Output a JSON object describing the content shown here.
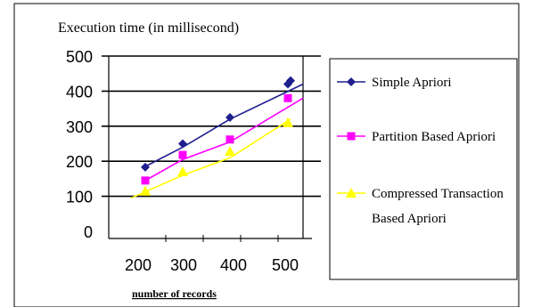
{
  "chart_data": {
    "type": "line",
    "title": "Execution time (in millisecond)",
    "xlabel": "number of records",
    "ylabel": "",
    "categories": [
      "200",
      "300",
      "400",
      "500"
    ],
    "ylim": [
      0,
      500
    ],
    "yticks": [
      "0",
      "100",
      "200",
      "300",
      "400",
      "500"
    ],
    "grid": true,
    "legend_position": "right",
    "series": [
      {
        "name": "Simple Apriori",
        "color": "#1f1f8f",
        "marker": "diamond",
        "values": [
          183,
          250,
          325,
          420
        ],
        "trend": [
          185,
          240,
          320,
          420
        ],
        "extra_point": 430
      },
      {
        "name": "Partition Based Apriori",
        "color": "#ff00ff",
        "marker": "square",
        "values": [
          145,
          218,
          262,
          380
        ],
        "trend": [
          145,
          205,
          255,
          380
        ]
      },
      {
        "name": "Compressed Transaction Based Apriori",
        "legend_lines": [
          "Compressed Transaction",
          "Based Apriori"
        ],
        "color": "#ffff00",
        "marker": "triangle",
        "values": [
          115,
          170,
          228,
          310
        ],
        "trend": [
          95,
          160,
          210,
          320
        ]
      }
    ]
  }
}
